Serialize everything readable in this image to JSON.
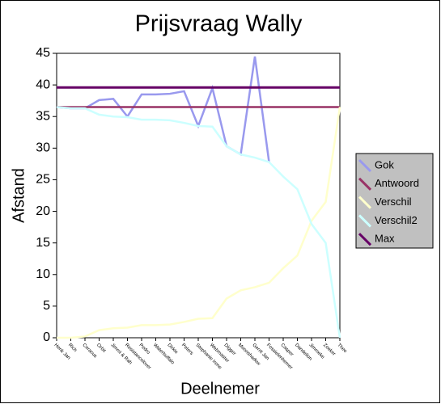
{
  "chart_data": {
    "type": "line",
    "title": "Prijsvraag Wally",
    "x_label": "Deelnemer",
    "y_label": "Afstand",
    "categories": [
      "Henk Jan",
      "Rich",
      "Ceracus",
      "Orbit",
      "Jimmi & Rah",
      "Resistancelover",
      "Pedro",
      "Waterbuffalo",
      "Dirkie",
      "Peters",
      "Stephanie Irene",
      "Webmaster",
      "Digger",
      "Moonshadow",
      "Gerrit Jan",
      "Fossielenhemer",
      "Casper",
      "Dandelion",
      "Jimmeke",
      "Zoeker",
      "Theo"
    ],
    "series": [
      {
        "name": "Gok",
        "color": "#9999ee",
        "values": [
          36.5,
          36.3,
          36.3,
          37.6,
          37.8,
          35,
          38.5,
          38.5,
          38.6,
          39,
          33.5,
          39.5,
          30.3,
          29,
          44.5,
          27.8,
          null,
          null,
          null,
          null,
          null
        ]
      },
      {
        "name": "Antwoord",
        "color": "#993366",
        "values": [
          36.5,
          36.5,
          36.5,
          36.5,
          36.5,
          36.5,
          36.5,
          36.5,
          36.5,
          36.5,
          36.5,
          36.5,
          36.5,
          36.5,
          36.5,
          36.5,
          36.5,
          36.5,
          36.5,
          36.5,
          36.5
        ]
      },
      {
        "name": "Verschil",
        "color": "#ffffcc",
        "values": [
          0,
          0,
          0.2,
          1.2,
          1.5,
          1.6,
          2,
          2,
          2.1,
          2.5,
          3,
          3.1,
          6.2,
          7.5,
          8,
          8.7,
          11,
          13,
          18.5,
          21.5,
          36.5
        ]
      },
      {
        "name": "Verschil2",
        "color": "#ccffff",
        "values": [
          36.5,
          36.3,
          36.3,
          35.3,
          35,
          34.9,
          34.5,
          34.5,
          34.4,
          34,
          33.5,
          33.4,
          30.3,
          29,
          28.5,
          27.8,
          25.5,
          23.5,
          18,
          15,
          0
        ]
      },
      {
        "name": "Max",
        "color": "#660066",
        "values": [
          39.6,
          39.6,
          39.6,
          39.6,
          39.6,
          39.6,
          39.6,
          39.6,
          39.6,
          39.6,
          39.6,
          39.6,
          39.6,
          39.6,
          39.6,
          39.6,
          39.6,
          39.6,
          39.6,
          39.6,
          39.6
        ]
      }
    ],
    "ylim": [
      0,
      45
    ],
    "yticks": [
      0,
      5,
      10,
      15,
      20,
      25,
      30,
      35,
      40,
      45
    ],
    "legend": "right"
  }
}
